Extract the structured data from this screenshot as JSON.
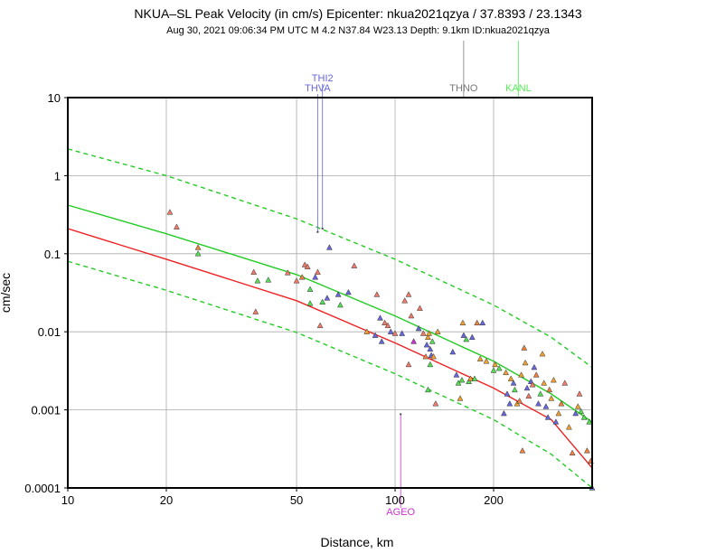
{
  "chart_data": {
    "type": "scatter",
    "title": "NKUA–SL Peak Velocity (in cm/s) Epicenter: nkua2021qzya / 37.8393 / 23.1343",
    "subtitle": "Aug 30, 2021 09:06:34 PM UTC   M 4.2   N37.84 W23.13   Depth: 9.1km   ID:nkua2021qzya",
    "xlabel": "Distance, km",
    "ylabel": "cm/sec",
    "x_scale": "log",
    "y_scale": "log",
    "xlim": [
      10,
      400
    ],
    "ylim": [
      0.0001,
      10
    ],
    "x_ticks": [
      {
        "value": 10,
        "label": "10"
      },
      {
        "value": 20,
        "label": "20"
      },
      {
        "value": 50,
        "label": "50"
      },
      {
        "value": 100,
        "label": "100"
      },
      {
        "value": 200,
        "label": "200"
      }
    ],
    "y_ticks": [
      {
        "value": 10,
        "label": "10"
      },
      {
        "value": 1,
        "label": "1"
      },
      {
        "value": 0.1,
        "label": "0.1"
      },
      {
        "value": 0.01,
        "label": "0.01"
      },
      {
        "value": 0.001,
        "label": "0.001"
      },
      {
        "value": 0.0001,
        "label": "0.0001"
      }
    ],
    "grid": true,
    "curves": [
      {
        "name": "upper bound",
        "color": "#22cc22",
        "dashed": true,
        "points": [
          [
            10,
            2.2
          ],
          [
            20,
            1.0
          ],
          [
            50,
            0.28
          ],
          [
            100,
            0.085
          ],
          [
            200,
            0.022
          ],
          [
            300,
            0.0085
          ],
          [
            400,
            0.0035
          ]
        ]
      },
      {
        "name": "median prediction",
        "color": "#22cc22",
        "dashed": false,
        "points": [
          [
            10,
            0.42
          ],
          [
            20,
            0.18
          ],
          [
            50,
            0.054
          ],
          [
            100,
            0.016
          ],
          [
            200,
            0.0042
          ],
          [
            300,
            0.0016
          ],
          [
            400,
            0.0007
          ]
        ]
      },
      {
        "name": "reference",
        "color": "#ee2222",
        "dashed": false,
        "points": [
          [
            10,
            0.21
          ],
          [
            20,
            0.085
          ],
          [
            50,
            0.025
          ],
          [
            100,
            0.0072
          ],
          [
            200,
            0.0019
          ],
          [
            300,
            0.00075
          ],
          [
            400,
            0.00018
          ]
        ]
      },
      {
        "name": "lower bound",
        "color": "#22cc22",
        "dashed": true,
        "points": [
          [
            10,
            0.08
          ],
          [
            20,
            0.034
          ],
          [
            50,
            0.0098
          ],
          [
            100,
            0.0029
          ],
          [
            200,
            0.00075
          ],
          [
            300,
            0.00027
          ],
          [
            400,
            0.0001
          ]
        ]
      }
    ],
    "labeled_stations": [
      {
        "name": "THI2",
        "distance": 60,
        "value": 0.21,
        "color": "#6666dd"
      },
      {
        "name": "THVA",
        "distance": 58,
        "value": 0.19,
        "color": "#6666dd"
      },
      {
        "name": "THNO",
        "distance": 162,
        "value": null,
        "color": "#777777"
      },
      {
        "name": "KANL",
        "distance": 238,
        "value": null,
        "color": "#55ee55"
      },
      {
        "name": "AGEO",
        "distance": 104,
        "value": 0.00088,
        "color": "#cc33cc"
      }
    ],
    "points": [
      [
        20.5,
        0.34,
        "#f07a6a"
      ],
      [
        21.5,
        0.22,
        "#f07a6a"
      ],
      [
        25,
        0.12,
        "#f08040"
      ],
      [
        25,
        0.1,
        "#55dd55"
      ],
      [
        37,
        0.058,
        "#f07a6a"
      ],
      [
        38,
        0.045,
        "#55dd55"
      ],
      [
        37.5,
        0.018,
        "#f07a6a"
      ],
      [
        41,
        0.046,
        "#55dd55"
      ],
      [
        47,
        0.057,
        "#f07a6a"
      ],
      [
        50,
        0.045,
        "#f07a6a"
      ],
      [
        52,
        0.05,
        "#f08040"
      ],
      [
        53,
        0.072,
        "#f07a6a"
      ],
      [
        54,
        0.068,
        "#f07a6a"
      ],
      [
        55,
        0.035,
        "#55dd55"
      ],
      [
        55,
        0.023,
        "#55dd55"
      ],
      [
        57,
        0.05,
        "#6666dd"
      ],
      [
        58,
        0.058,
        "#f07a6a"
      ],
      [
        59,
        0.012,
        "#f07a6a"
      ],
      [
        60,
        0.024,
        "#55dd55"
      ],
      [
        62,
        0.027,
        "#6666dd"
      ],
      [
        63,
        0.12,
        "#6666dd"
      ],
      [
        67,
        0.03,
        "#6666dd"
      ],
      [
        68,
        0.022,
        "#55dd55"
      ],
      [
        72,
        0.032,
        "#6666dd"
      ],
      [
        75,
        0.07,
        "#f07a6a"
      ],
      [
        82,
        0.01,
        "#f0a030"
      ],
      [
        87,
        0.009,
        "#6666dd"
      ],
      [
        88,
        0.03,
        "#f07a6a"
      ],
      [
        90,
        0.015,
        "#6666dd"
      ],
      [
        91,
        0.0075,
        "#6666dd"
      ],
      [
        93,
        0.013,
        "#f07a6a"
      ],
      [
        95,
        0.012,
        "#f07a6a"
      ],
      [
        97,
        0.01,
        "#6666dd"
      ],
      [
        100,
        0.0095,
        "#f07a6a"
      ],
      [
        105,
        0.0095,
        "#6666dd"
      ],
      [
        107,
        0.025,
        "#f07a6a"
      ],
      [
        110,
        0.03,
        "#f07a6a"
      ],
      [
        110,
        0.0038,
        "#f07a6a"
      ],
      [
        112,
        0.016,
        "#f07a6a"
      ],
      [
        114,
        0.0075,
        "#cc33cc"
      ],
      [
        118,
        0.011,
        "#6666dd"
      ],
      [
        119,
        0.02,
        "#f07a6a"
      ],
      [
        122,
        0.0095,
        "#f07a6a"
      ],
      [
        124,
        0.0048,
        "#f08040"
      ],
      [
        125,
        0.0068,
        "#6666dd"
      ],
      [
        126,
        0.0085,
        "#f0a030"
      ],
      [
        127,
        0.0095,
        "#f0a030"
      ],
      [
        128,
        0.006,
        "#6666dd"
      ],
      [
        128,
        0.0038,
        "#55dd55"
      ],
      [
        129,
        0.005,
        "#6666dd"
      ],
      [
        130,
        0.0075,
        "#55dd55"
      ],
      [
        131,
        0.0048,
        "#f0a030"
      ],
      [
        133,
        0.0012,
        "#f07a6a"
      ],
      [
        135,
        0.01,
        "#f0a030"
      ],
      [
        126,
        0.0018,
        "#55dd55"
      ],
      [
        150,
        0.0055,
        "#6666dd"
      ],
      [
        154,
        0.0028,
        "#6666dd"
      ],
      [
        156,
        0.0022,
        "#55dd55"
      ],
      [
        158,
        0.0014,
        "#f0a030"
      ],
      [
        160,
        0.0024,
        "#55dd55"
      ],
      [
        161,
        0.013,
        "#f0a030"
      ],
      [
        162,
        0.009,
        "#6666dd"
      ],
      [
        165,
        0.008,
        "#55dd55"
      ],
      [
        168,
        0.0023,
        "#55dd55"
      ],
      [
        170,
        0.0025,
        "#f0a030"
      ],
      [
        172,
        0.0085,
        "#6666dd"
      ],
      [
        175,
        0.0025,
        "#55dd55"
      ],
      [
        178,
        0.013,
        "#f08040"
      ],
      [
        182,
        0.0045,
        "#f0a030"
      ],
      [
        185,
        0.013,
        "#6666dd"
      ],
      [
        190,
        0.0042,
        "#f0a030"
      ],
      [
        200,
        0.0032,
        "#55dd55"
      ],
      [
        202,
        0.0038,
        "#f0a030"
      ],
      [
        208,
        0.0034,
        "#55dd55"
      ],
      [
        215,
        0.0009,
        "#6666dd"
      ],
      [
        218,
        0.003,
        "#f0a030"
      ],
      [
        220,
        0.0016,
        "#6666dd"
      ],
      [
        224,
        0.0012,
        "#6666dd"
      ],
      [
        226,
        0.0025,
        "#f0a030"
      ],
      [
        230,
        0.0022,
        "#6666dd"
      ],
      [
        232,
        0.0018,
        "#55dd55"
      ],
      [
        236,
        0.0012,
        "#f0a030"
      ],
      [
        240,
        0.0013,
        "#f08040"
      ],
      [
        243,
        0.0028,
        "#f0a030"
      ],
      [
        245,
        0.0003,
        "#f08040"
      ],
      [
        248,
        0.0062,
        "#f08040"
      ],
      [
        250,
        0.004,
        "#f0a030"
      ],
      [
        253,
        0.0019,
        "#6666dd"
      ],
      [
        256,
        0.0015,
        "#f07a6a"
      ],
      [
        260,
        0.0023,
        "#6666dd"
      ],
      [
        263,
        0.0021,
        "#f07a6a"
      ],
      [
        266,
        0.0035,
        "#6666dd"
      ],
      [
        270,
        0.0028,
        "#f08040"
      ],
      [
        274,
        0.0012,
        "#6666dd"
      ],
      [
        278,
        0.0016,
        "#55dd55"
      ],
      [
        282,
        0.0052,
        "#f0a030"
      ],
      [
        285,
        0.0022,
        "#f0a030"
      ],
      [
        289,
        0.0011,
        "#6666dd"
      ],
      [
        293,
        0.0008,
        "#6666dd"
      ],
      [
        296,
        0.0018,
        "#f08040"
      ],
      [
        300,
        0.0014,
        "#f0a030"
      ],
      [
        305,
        0.0024,
        "#f0a030"
      ],
      [
        310,
        0.0007,
        "#6666dd"
      ],
      [
        316,
        0.0009,
        "#f0a030"
      ],
      [
        322,
        0.0012,
        "#f08040"
      ],
      [
        330,
        0.0022,
        "#f07a6a"
      ],
      [
        340,
        0.0006,
        "#f0a030"
      ],
      [
        348,
        0.00028,
        "#f08040"
      ],
      [
        356,
        0.0009,
        "#6666dd"
      ],
      [
        362,
        0.0011,
        "#f0a030"
      ],
      [
        366,
        0.0016,
        "#f07a6a"
      ],
      [
        370,
        0.00095,
        "#55dd55"
      ],
      [
        378,
        0.0008,
        "#55dd55"
      ],
      [
        386,
        0.0003,
        "#f08040"
      ],
      [
        392,
        0.0007,
        "#55dd55"
      ],
      [
        396,
        0.00022,
        "#f08040"
      ],
      [
        400,
        0.0001,
        "#6666dd"
      ]
    ]
  }
}
